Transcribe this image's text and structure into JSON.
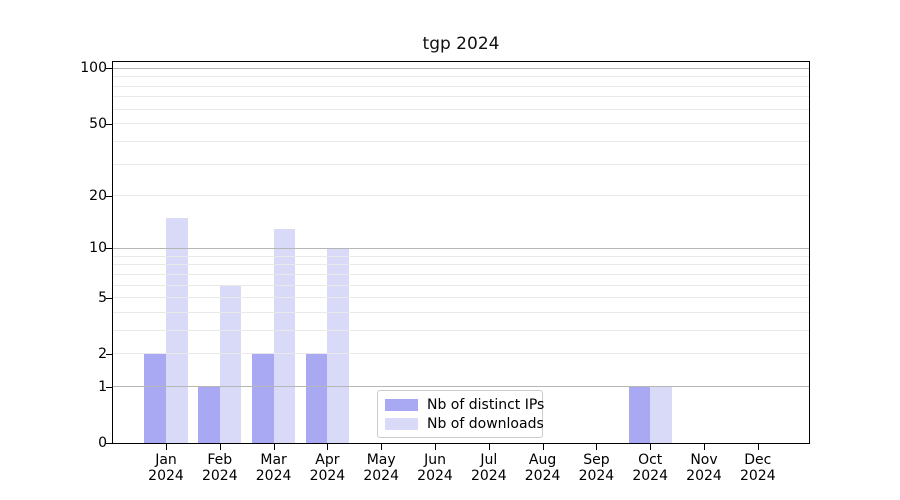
{
  "title": "tgp 2024",
  "chart_data": {
    "type": "bar",
    "title": "tgp 2024",
    "yscale": "log1p",
    "ylim": [
      0,
      110
    ],
    "xlabel": "",
    "ylabel": "",
    "categories": [
      "Jan",
      "Feb",
      "Mar",
      "Apr",
      "May",
      "Jun",
      "Jul",
      "Aug",
      "Sep",
      "Oct",
      "Nov",
      "Dec"
    ],
    "year_label": "2024",
    "y_ticks": [
      0,
      1,
      2,
      5,
      10,
      20,
      50,
      100
    ],
    "major_gridlines": [
      1,
      10,
      100
    ],
    "minor_gridlines": [
      2,
      3,
      4,
      5,
      6,
      7,
      8,
      9,
      20,
      30,
      40,
      50,
      60,
      70,
      80,
      90
    ],
    "series": [
      {
        "name": "Nb of distinct IPs",
        "color": "#a9a9f3",
        "values": [
          2,
          1,
          2,
          2,
          0,
          0,
          0,
          0,
          0,
          1,
          0,
          0
        ]
      },
      {
        "name": "Nb of downloads",
        "color": "#d9d9f8",
        "values": [
          15,
          6,
          13,
          10,
          0,
          0,
          0,
          0,
          0,
          1,
          0,
          0
        ]
      }
    ],
    "legend": {
      "position": "lower center",
      "entries": [
        "Nb of distinct IPs",
        "Nb of downloads"
      ]
    },
    "grid": true
  },
  "colors": {
    "major_grid": "#b6b6b6",
    "minor_grid": "#e9e9e9",
    "spine": "#000000",
    "background": "#ffffff",
    "text": "#000000",
    "legend_border": "#cccccc"
  }
}
